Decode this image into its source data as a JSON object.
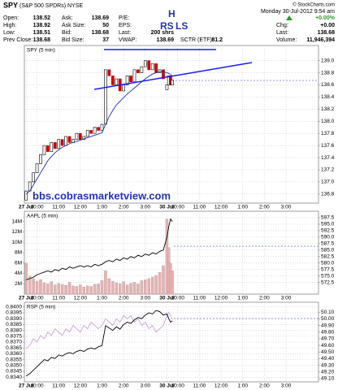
{
  "quote": {
    "symbol": "SPY",
    "name": "(S&P 500 SPDRs) NYSE",
    "credit": "© StockCharts.com",
    "datetime": "Monday  30-Jul-2012  9:54 am",
    "change_pct": "+0.00%",
    "columns": [
      [
        {
          "label": "Open:",
          "value": "138.52"
        },
        {
          "label": "High:",
          "value": "138.92"
        },
        {
          "label": "Low:",
          "value": "138.51"
        },
        {
          "label": "Prev Close:",
          "value": "138.68"
        }
      ],
      [
        {
          "label": "Ask:",
          "value": "138.69"
        },
        {
          "label": "Ask Size:",
          "value": "50"
        },
        {
          "label": "Bid:",
          "value": "138.68"
        },
        {
          "label": "Bid Size:",
          "value": "37"
        }
      ],
      [
        {
          "label": "P/E:"
        },
        {
          "label": "EPS:"
        },
        {
          "label": "Last:",
          "value": "200 shrs"
        },
        {
          "label": "VWAP:",
          "value": "138.69"
        }
      ],
      [
        {
          "label": "Chg:",
          "value": "+0.00"
        },
        {
          "label": "Last:",
          "value": "138.68"
        },
        {
          "label": "Volume:",
          "value": "11,946,394"
        }
      ]
    ],
    "sctr": {
      "label": "SCTR (ETF):",
      "value": "81.2"
    }
  },
  "chart_data": [
    {
      "type": "candlestick",
      "title": "SPY (5 min)",
      "annotations": [
        "H",
        "RS",
        "LS",
        "bbs.cobrasmarketview.com"
      ],
      "up_color": "#000000",
      "down_color": "#cc0000",
      "grid": true,
      "yaxis_side": "right",
      "xlim": [
        -1,
        162
      ],
      "xticks": [
        {
          "value": 0,
          "label": "27 Jul"
        },
        {
          "value": 6,
          "label": "10:00"
        },
        {
          "value": 18,
          "label": "11:00"
        },
        {
          "value": 30,
          "label": "12:00"
        },
        {
          "value": 42,
          "label": "1:00"
        },
        {
          "value": 54,
          "label": "2:00"
        },
        {
          "value": 66,
          "label": "3:00"
        },
        {
          "value": 78,
          "label": "30 Jul"
        },
        {
          "value": 84,
          "label": "10:00"
        },
        {
          "value": 96,
          "label": "11:00"
        },
        {
          "value": 108,
          "label": "12:00"
        },
        {
          "value": 120,
          "label": "1:00"
        },
        {
          "value": 132,
          "label": "2:00"
        },
        {
          "value": 144,
          "label": "3:00"
        }
      ],
      "ylim": [
        136.65,
        139.25
      ],
      "yticks": [
        {
          "value": 139,
          "label": "139.0"
        },
        138.8,
        138.6,
        138.4,
        138.2,
        {
          "value": 138,
          "label": "138.0"
        },
        137.8,
        137.6,
        137.4,
        137.2,
        {
          "value": 137,
          "label": "137.0"
        },
        136.8
      ],
      "x": [
        0,
        2,
        4,
        6,
        8,
        10,
        12,
        14,
        16,
        18,
        20,
        22,
        24,
        26,
        28,
        30,
        32,
        34,
        36,
        38,
        40,
        42,
        44,
        46,
        48,
        50,
        52,
        54,
        56,
        58,
        60,
        62,
        64,
        66,
        68,
        70,
        72,
        74,
        76,
        78,
        79,
        80,
        81
      ],
      "open": [
        136.7,
        136.85,
        137.0,
        137.15,
        137.3,
        137.45,
        137.6,
        137.5,
        137.65,
        137.55,
        137.7,
        137.6,
        137.75,
        137.65,
        137.7,
        137.8,
        137.7,
        137.75,
        137.85,
        137.8,
        137.9,
        137.85,
        137.95,
        138.85,
        138.75,
        138.6,
        138.7,
        138.5,
        138.6,
        138.75,
        138.65,
        138.85,
        138.8,
        138.9,
        139.0,
        138.85,
        138.95,
        138.8,
        138.85,
        138.52,
        138.6,
        138.75,
        138.6
      ],
      "close": [
        136.85,
        137.0,
        137.15,
        137.3,
        137.45,
        137.6,
        137.5,
        137.65,
        137.55,
        137.7,
        137.6,
        137.75,
        137.65,
        137.7,
        137.8,
        137.7,
        137.75,
        137.85,
        137.8,
        137.9,
        137.85,
        137.95,
        138.85,
        138.75,
        138.6,
        138.7,
        138.5,
        138.6,
        138.75,
        138.65,
        138.85,
        138.8,
        138.9,
        139.0,
        138.85,
        138.95,
        138.8,
        138.85,
        138.7,
        138.6,
        138.75,
        138.6,
        138.68
      ],
      "series": [
        {
          "color": "#1f2fb0",
          "values": [
            136.8,
            136.85,
            136.95,
            137.05,
            137.15,
            137.25,
            137.35,
            137.42,
            137.48,
            137.53,
            137.57,
            137.6,
            137.63,
            137.65,
            137.67,
            137.69,
            137.71,
            137.73,
            137.75,
            137.77,
            137.79,
            137.81,
            137.95,
            138.08,
            138.18,
            138.27,
            138.33,
            138.39,
            138.45,
            138.5,
            138.55,
            138.6,
            138.65,
            138.7,
            138.74,
            138.78,
            138.8,
            138.82,
            138.82,
            138.8,
            138.79,
            138.77,
            138.75
          ]
        }
      ]
    },
    {
      "type": "line",
      "title": "AAPL (5 min)",
      "grid": true,
      "yaxis_side": "right",
      "y2axis_side": "left",
      "xlim": [
        -1,
        162
      ],
      "xticks": [
        {
          "value": 0,
          "label": "27 Jul"
        },
        {
          "value": 6,
          "label": "10:00"
        },
        {
          "value": 18,
          "label": "11:00"
        },
        {
          "value": 30,
          "label": "12:00"
        },
        {
          "value": 42,
          "label": "1:00"
        },
        {
          "value": 54,
          "label": "2:00"
        },
        {
          "value": 66,
          "label": "3:00"
        },
        {
          "value": 78,
          "label": "30 Jul"
        },
        {
          "value": 84,
          "label": "10:00"
        },
        {
          "value": 96,
          "label": "11:00"
        },
        {
          "value": 108,
          "label": "12:00"
        },
        {
          "value": 120,
          "label": "1:00"
        },
        {
          "value": 132,
          "label": "2:00"
        },
        {
          "value": 144,
          "label": "3:00"
        }
      ],
      "ylim": [
        568,
        600
      ],
      "yticks": [
        597.5,
        {
          "value": 595,
          "label": "595.0"
        },
        592.5,
        {
          "value": 590,
          "label": "590.0"
        },
        587.5,
        {
          "value": 585,
          "label": "585.0"
        },
        582.5,
        {
          "value": 580,
          "label": "580.0"
        },
        577.5,
        {
          "value": 575,
          "label": "575.0"
        },
        572.5
      ],
      "y2lim": [
        0,
        16000000
      ],
      "y2ticks": [
        {
          "value": 14000000,
          "label": "14M"
        },
        {
          "value": 12000000,
          "label": "12M"
        },
        {
          "value": 10000000,
          "label": "10M"
        },
        {
          "value": 8000000,
          "label": "8M"
        },
        {
          "value": 6000000,
          "label": "6M"
        },
        {
          "value": 4000000,
          "label": "4M"
        },
        {
          "value": 2000000,
          "label": "2M"
        }
      ],
      "x": [
        0,
        2,
        4,
        6,
        8,
        10,
        12,
        14,
        16,
        18,
        20,
        22,
        24,
        26,
        28,
        30,
        32,
        34,
        36,
        38,
        40,
        42,
        44,
        46,
        48,
        50,
        52,
        54,
        56,
        58,
        60,
        62,
        64,
        66,
        68,
        70,
        72,
        74,
        76,
        78,
        79,
        80,
        81
      ],
      "series": [
        {
          "kind": "bar",
          "axis": "y2",
          "color": "#eab0b0",
          "values": [
            6000000,
            3500000,
            3000000,
            2500000,
            2800000,
            2200000,
            2000000,
            2400000,
            1800000,
            2100000,
            1900000,
            1700000,
            2300000,
            1600000,
            1500000,
            1800000,
            1400000,
            1600000,
            1500000,
            1900000,
            2000000,
            2600000,
            4500000,
            3000000,
            2500000,
            2200000,
            2000000,
            2400000,
            1800000,
            2100000,
            2300000,
            2000000,
            2600000,
            2800000,
            3000000,
            3300000,
            3600000,
            4200000,
            5500000,
            14500000,
            9000000,
            6000000,
            4500000
          ]
        },
        {
          "kind": "line",
          "color": "#000000",
          "values": [
            573.5,
            574,
            574.5,
            575.5,
            576,
            576.5,
            577,
            576.5,
            577.5,
            577,
            578,
            577.5,
            578.5,
            578,
            578.5,
            579,
            578.5,
            579,
            578.5,
            579.5,
            579,
            579.5,
            580.5,
            581,
            580.5,
            581.5,
            581,
            582,
            581.5,
            582.5,
            582,
            583,
            582.5,
            583.5,
            583,
            584,
            583.5,
            584.5,
            585,
            590,
            594,
            597,
            596
          ]
        }
      ]
    },
    {
      "type": "line",
      "title": "RSP (5 min)",
      "grid": true,
      "yaxis_side": "left",
      "y2axis_side": "right",
      "xlim": [
        -1,
        162
      ],
      "xticks": [
        {
          "value": 0,
          "label": "27 Jul"
        },
        {
          "value": 6,
          "label": "10:00"
        },
        {
          "value": 18,
          "label": "11:00"
        },
        {
          "value": 30,
          "label": "12:00"
        },
        {
          "value": 42,
          "label": "1:00"
        },
        {
          "value": 54,
          "label": "2:00"
        },
        {
          "value": 66,
          "label": "3:00"
        },
        {
          "value": 78,
          "label": "30 Jul"
        },
        {
          "value": 84,
          "label": "10:00"
        },
        {
          "value": 96,
          "label": "11:00"
        },
        {
          "value": 108,
          "label": "12:00"
        },
        {
          "value": 120,
          "label": "1:00"
        },
        {
          "value": 132,
          "label": "2:00"
        },
        {
          "value": 144,
          "label": "3:00"
        }
      ],
      "ylim": [
        0.8336,
        0.8404
      ],
      "yticks": [
        {
          "value": 0.84,
          "label": "0.8400"
        },
        0.8395,
        {
          "value": 0.839,
          "label": "0.8390"
        },
        0.8385,
        {
          "value": 0.838,
          "label": "0.8380"
        },
        0.8375,
        {
          "value": 0.837,
          "label": "0.8370"
        },
        0.8365,
        {
          "value": 0.836,
          "label": "0.8360"
        },
        0.8355,
        {
          "value": 0.835,
          "label": "0.8350"
        },
        0.8345,
        {
          "value": 0.834,
          "label": "0.8340"
        }
      ],
      "y2lim": [
        49.05,
        50.25
      ],
      "y2ticks": [
        {
          "value": 50.1,
          "label": "50.10"
        },
        {
          "value": 50,
          "label": "50.00"
        },
        {
          "value": 49.9,
          "label": "49.90"
        },
        {
          "value": 49.8,
          "label": "49.80"
        },
        {
          "value": 49.7,
          "label": "49.70"
        },
        {
          "value": 49.6,
          "label": "49.60"
        },
        {
          "value": 49.5,
          "label": "49.50"
        },
        {
          "value": 49.4,
          "label": "49.40"
        },
        {
          "value": 49.3,
          "label": "49.30"
        },
        {
          "value": 49.2,
          "label": "49.20"
        },
        {
          "value": 49.1,
          "label": "49.10"
        }
      ],
      "x": [
        0,
        2,
        4,
        6,
        8,
        10,
        12,
        14,
        16,
        18,
        20,
        22,
        24,
        26,
        28,
        30,
        32,
        34,
        36,
        38,
        40,
        42,
        44,
        46,
        48,
        50,
        52,
        54,
        56,
        58,
        60,
        62,
        64,
        66,
        68,
        70,
        72,
        74,
        76,
        78,
        79,
        80,
        81
      ],
      "series": [
        {
          "kind": "line",
          "axis": "y2",
          "color": "#c8a0e0",
          "values": [
            49.55,
            49.6,
            49.7,
            49.65,
            49.75,
            49.7,
            49.8,
            49.75,
            49.85,
            49.8,
            49.75,
            49.85,
            49.8,
            49.9,
            49.85,
            49.8,
            49.9,
            49.85,
            49.95,
            49.9,
            49.85,
            49.9,
            50.0,
            49.95,
            49.9,
            50.0,
            49.95,
            50.05,
            50.0,
            50.05,
            49.95,
            50.0,
            49.9,
            49.95,
            49.85,
            49.9,
            49.8,
            49.85,
            49.9,
            50.05,
            50.1,
            50.05,
            50.0
          ]
        },
        {
          "kind": "line",
          "color": "#000000",
          "values": [
            0.8341,
            0.8343,
            0.8346,
            0.8349,
            0.8352,
            0.8355,
            0.8354,
            0.8357,
            0.8356,
            0.8359,
            0.8358,
            0.836,
            0.8361,
            0.836,
            0.8362,
            0.8363,
            0.8362,
            0.8364,
            0.8365,
            0.8364,
            0.8366,
            0.8367,
            0.8384,
            0.8382,
            0.838,
            0.8383,
            0.8381,
            0.8385,
            0.8387,
            0.8386,
            0.8389,
            0.8391,
            0.839,
            0.8393,
            0.8395,
            0.8394,
            0.8397,
            0.8396,
            0.8393,
            0.8394,
            0.839,
            0.8387,
            0.8388
          ]
        }
      ]
    }
  ]
}
